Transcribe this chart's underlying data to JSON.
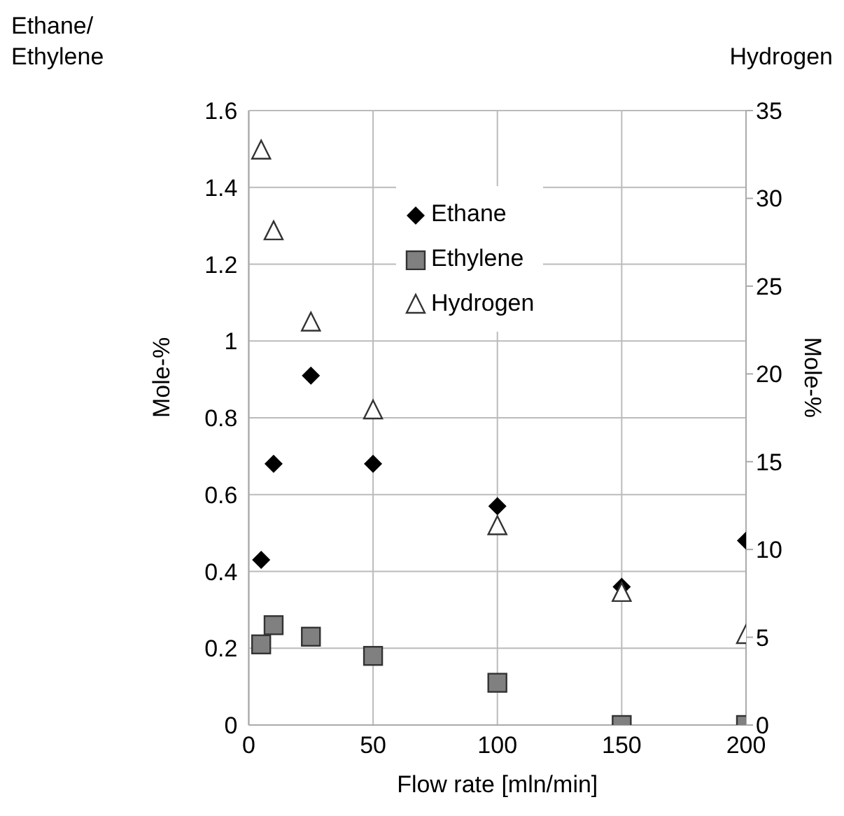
{
  "chart_data": {
    "type": "scatter",
    "xlabel": "Flow rate [mln/min]",
    "ylabel": "Mole-%",
    "y2label": "Mole-%",
    "annotations": [
      "Ethane/\nEthylene",
      "Hydrogen"
    ],
    "xlim": [
      0,
      200
    ],
    "xticks": [
      0,
      50,
      100,
      150,
      200
    ],
    "ylim": [
      0,
      1.6
    ],
    "yticks": [
      0,
      0.2,
      0.4,
      0.6,
      0.8,
      1,
      1.2,
      1.4,
      1.6
    ],
    "y2lim": [
      0,
      35
    ],
    "y2ticks": [
      0,
      5,
      10,
      15,
      20,
      25,
      30,
      35
    ],
    "grid": true,
    "legend": "top",
    "x": [
      5,
      10,
      25,
      50,
      100,
      150,
      200
    ],
    "series": [
      {
        "name": "Ethane",
        "color": "#000000",
        "marker": "diamond",
        "values": [
          0.43,
          0.68,
          0.91,
          0.68,
          0.57,
          0.36,
          0.48
        ]
      },
      {
        "name": "Ethylene",
        "color": "#808080",
        "marker": "square",
        "values": [
          0.21,
          0.26,
          0.23,
          0.18,
          0.11,
          0,
          0
        ]
      },
      {
        "name": "Hydrogen",
        "color": "#ffffff",
        "marker": "triangle",
        "axis": "y2",
        "values": [
          32.7,
          28.1,
          22.9,
          17.9,
          11.3,
          7.5,
          5.1
        ]
      }
    ]
  }
}
